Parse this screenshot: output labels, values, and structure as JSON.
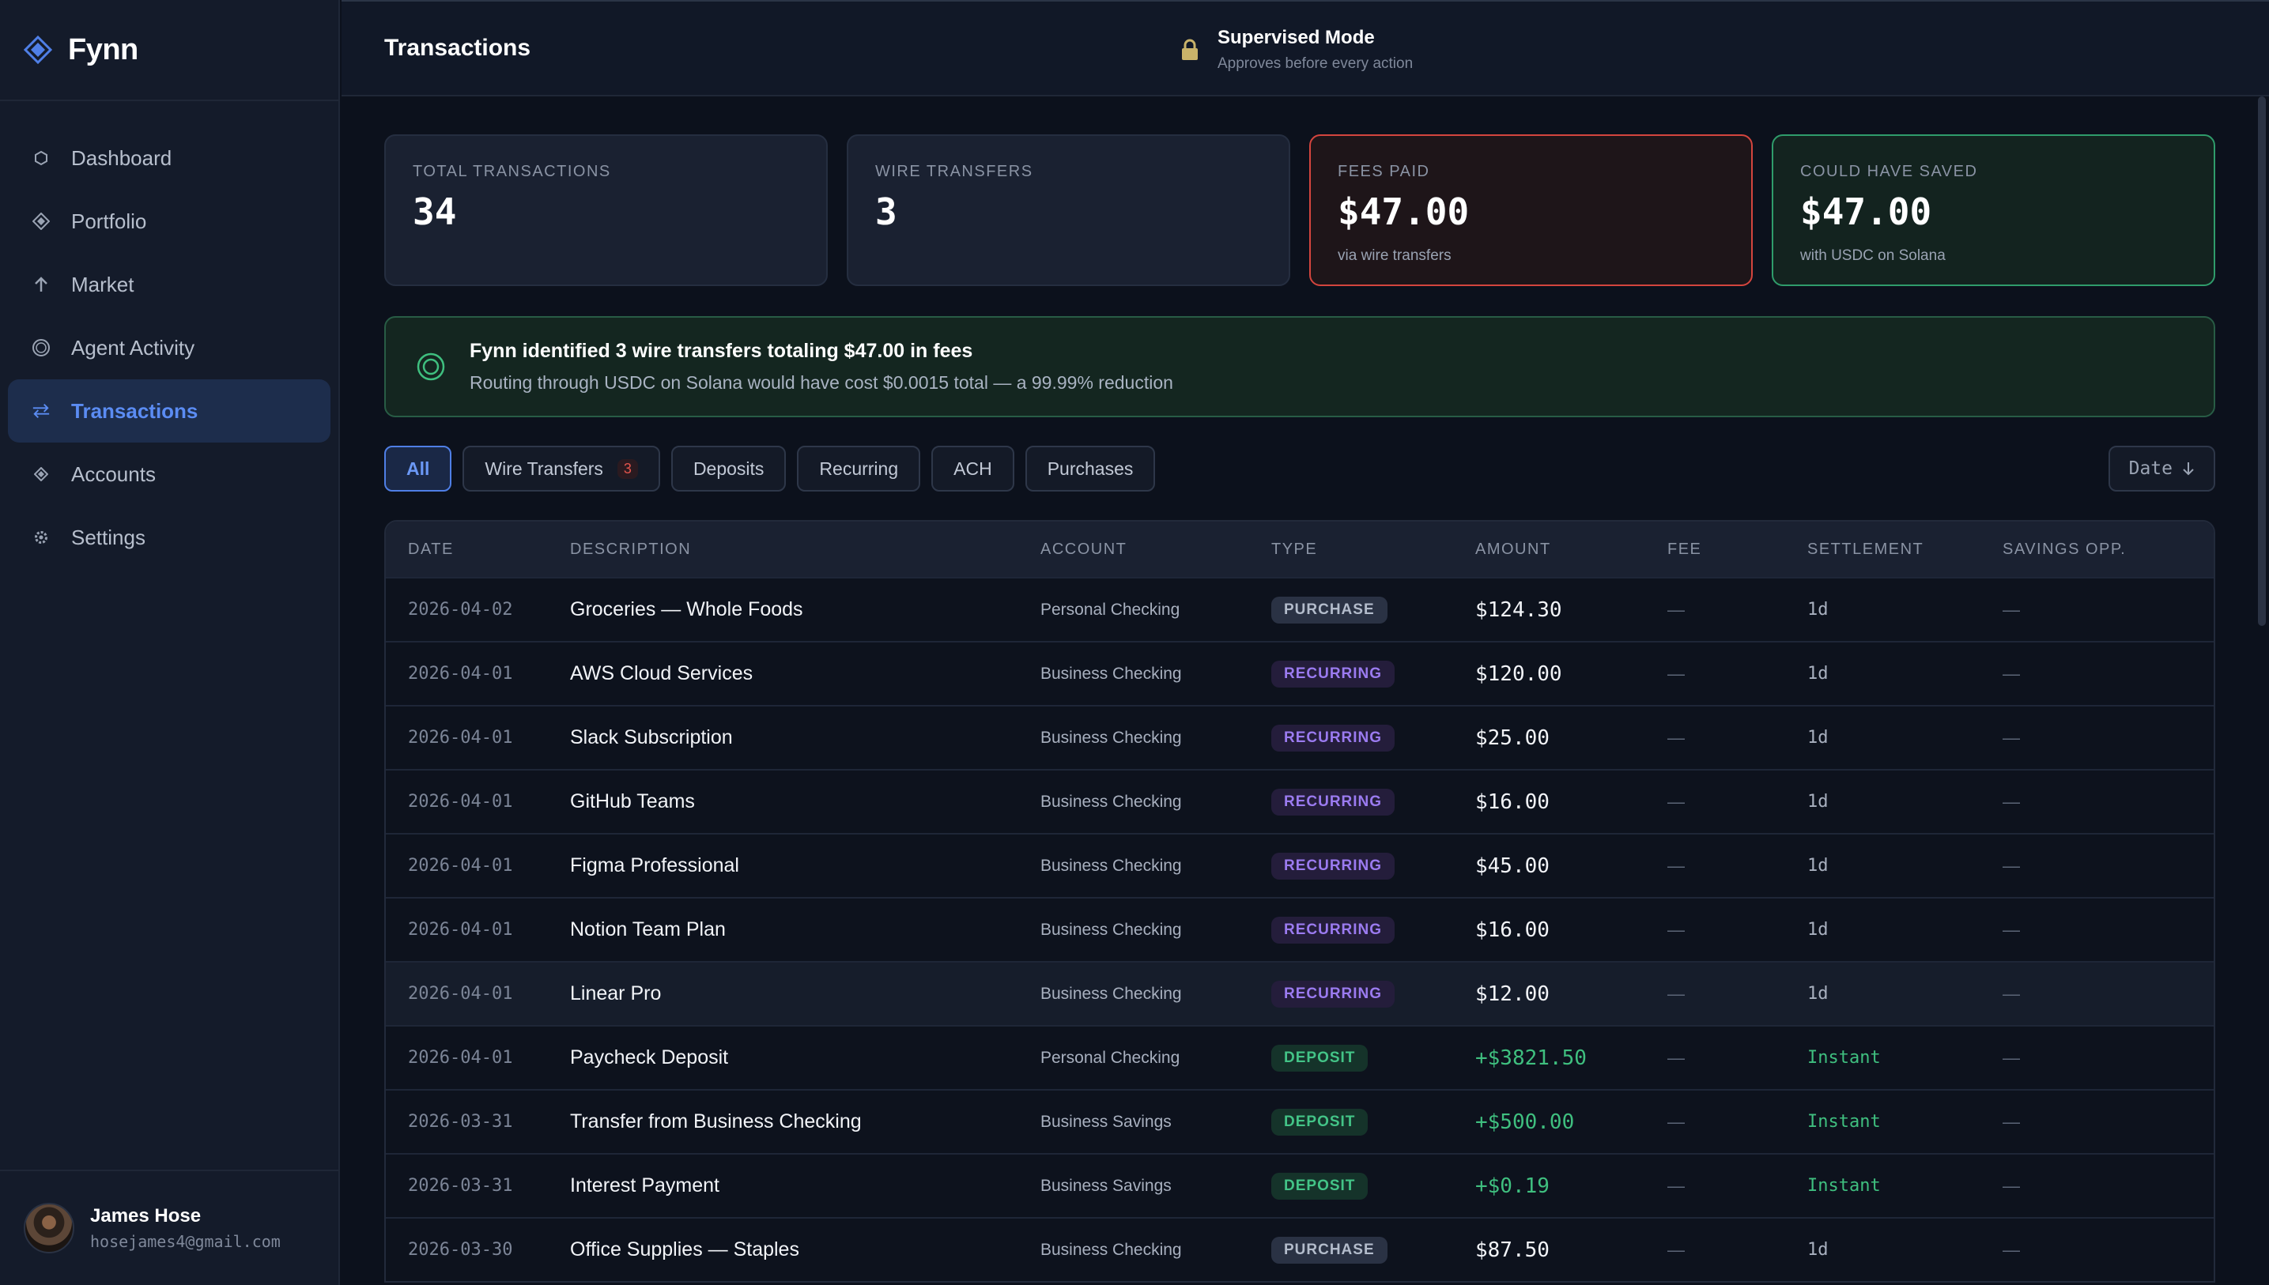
{
  "app": {
    "name": "Fynn"
  },
  "sidebar": {
    "items": [
      {
        "label": "Dashboard",
        "icon": "hexagon-icon"
      },
      {
        "label": "Portfolio",
        "icon": "diamond-icon"
      },
      {
        "label": "Market",
        "icon": "arrow-up-icon"
      },
      {
        "label": "Agent Activity",
        "icon": "circle-icon"
      },
      {
        "label": "Transactions",
        "icon": "swap-arrows-icon",
        "active": true
      },
      {
        "label": "Accounts",
        "icon": "small-diamond-icon"
      },
      {
        "label": "Settings",
        "icon": "gear-icon"
      }
    ]
  },
  "user": {
    "name": "James Hose",
    "email": "hosejames4@gmail.com"
  },
  "header": {
    "title": "Transactions",
    "mode_title": "Supervised Mode",
    "mode_subtitle": "Approves before every action"
  },
  "cards": [
    {
      "label": "TOTAL TRANSACTIONS",
      "value": "34",
      "sub": ""
    },
    {
      "label": "WIRE TRANSFERS",
      "value": "3",
      "sub": ""
    },
    {
      "label": "FEES PAID",
      "value": "$47.00",
      "sub": "via wire transfers"
    },
    {
      "label": "COULD HAVE SAVED",
      "value": "$47.00",
      "sub": "with USDC on Solana"
    }
  ],
  "banner": {
    "title": "Fynn identified 3 wire transfers totaling $47.00 in fees",
    "subtitle": "Routing through USDC on Solana would have cost $0.0015 total — a 99.99% reduction"
  },
  "filters": {
    "chips": [
      "All",
      "Wire Transfers",
      "Deposits",
      "Recurring",
      "ACH",
      "Purchases"
    ],
    "wire_count": "3",
    "sort_label": "Date"
  },
  "table": {
    "headers": [
      "DATE",
      "DESCRIPTION",
      "ACCOUNT",
      "TYPE",
      "AMOUNT",
      "FEE",
      "SETTLEMENT",
      "SAVINGS OPP."
    ],
    "rows": [
      {
        "date": "2026-04-02",
        "desc": "Groceries — Whole Foods",
        "account": "Personal Checking",
        "type": "PURCHASE",
        "amount": "$124.30",
        "fee": "—",
        "settlement": "1d",
        "savings": "—"
      },
      {
        "date": "2026-04-01",
        "desc": "AWS Cloud Services",
        "account": "Business Checking",
        "type": "RECURRING",
        "amount": "$120.00",
        "fee": "—",
        "settlement": "1d",
        "savings": "—"
      },
      {
        "date": "2026-04-01",
        "desc": "Slack Subscription",
        "account": "Business Checking",
        "type": "RECURRING",
        "amount": "$25.00",
        "fee": "—",
        "settlement": "1d",
        "savings": "—"
      },
      {
        "date": "2026-04-01",
        "desc": "GitHub Teams",
        "account": "Business Checking",
        "type": "RECURRING",
        "amount": "$16.00",
        "fee": "—",
        "settlement": "1d",
        "savings": "—"
      },
      {
        "date": "2026-04-01",
        "desc": "Figma Professional",
        "account": "Business Checking",
        "type": "RECURRING",
        "amount": "$45.00",
        "fee": "—",
        "settlement": "1d",
        "savings": "—"
      },
      {
        "date": "2026-04-01",
        "desc": "Notion Team Plan",
        "account": "Business Checking",
        "type": "RECURRING",
        "amount": "$16.00",
        "fee": "—",
        "settlement": "1d",
        "savings": "—"
      },
      {
        "date": "2026-04-01",
        "desc": "Linear Pro",
        "account": "Business Checking",
        "type": "RECURRING",
        "amount": "$12.00",
        "fee": "—",
        "settlement": "1d",
        "savings": "—"
      },
      {
        "date": "2026-04-01",
        "desc": "Paycheck Deposit",
        "account": "Personal Checking",
        "type": "DEPOSIT",
        "amount": "+$3821.50",
        "fee": "—",
        "settlement": "Instant",
        "savings": "—"
      },
      {
        "date": "2026-03-31",
        "desc": "Transfer from Business Checking",
        "account": "Business Savings",
        "type": "DEPOSIT",
        "amount": "+$500.00",
        "fee": "—",
        "settlement": "Instant",
        "savings": "—"
      },
      {
        "date": "2026-03-31",
        "desc": "Interest Payment",
        "account": "Business Savings",
        "type": "DEPOSIT",
        "amount": "+$0.19",
        "fee": "—",
        "settlement": "Instant",
        "savings": "—"
      },
      {
        "date": "2026-03-30",
        "desc": "Office Supplies — Staples",
        "account": "Business Checking",
        "type": "PURCHASE",
        "amount": "$87.50",
        "fee": "—",
        "settlement": "1d",
        "savings": "—"
      }
    ]
  },
  "colors": {
    "accent": "#5b8cf3",
    "positive": "#3fbf7f",
    "danger": "#d4453e",
    "recurring": "#9b7bf0"
  }
}
